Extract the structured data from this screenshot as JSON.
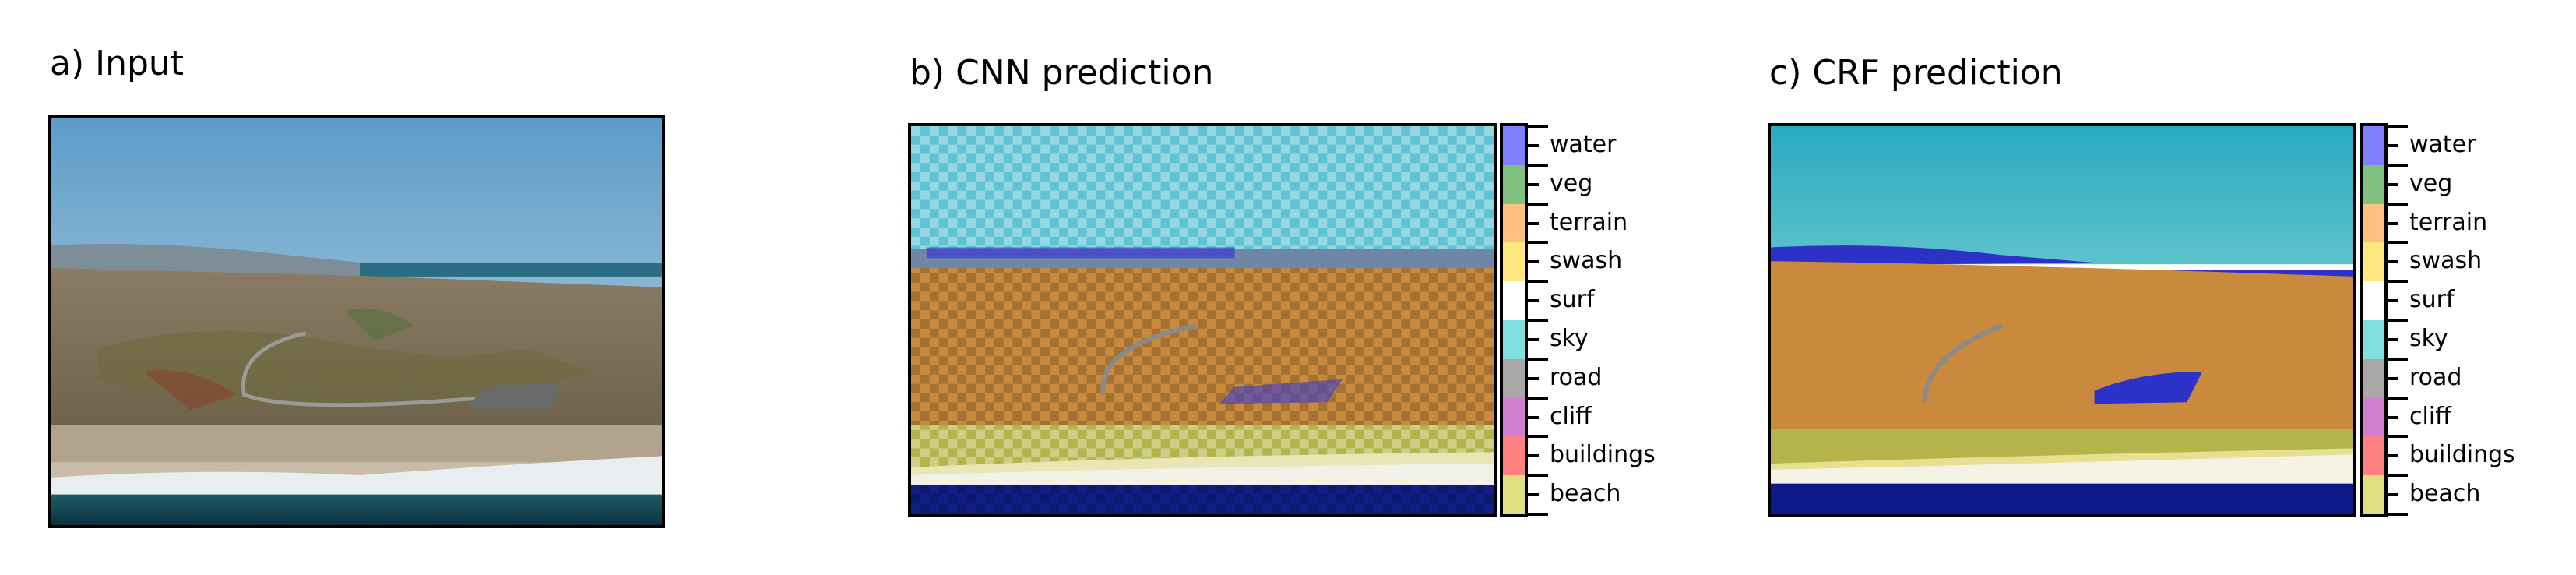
{
  "panels": [
    {
      "title": "a) Input"
    },
    {
      "title": "b) CNN prediction"
    },
    {
      "title": "c) CRF prediction"
    }
  ],
  "colorbar": {
    "classes": [
      {
        "label": "water",
        "color": "#8080ff"
      },
      {
        "label": "veg",
        "color": "#80c080"
      },
      {
        "label": "terrain",
        "color": "#ffc080"
      },
      {
        "label": "swash",
        "color": "#ffe880"
      },
      {
        "label": "surf",
        "color": "#ffffff"
      },
      {
        "label": "sky",
        "color": "#80e0e0"
      },
      {
        "label": "road",
        "color": "#a8a8a8"
      },
      {
        "label": "cliff",
        "color": "#d080d0"
      },
      {
        "label": "buildings",
        "color": "#ff8080"
      },
      {
        "label": "beach",
        "color": "#e0e080"
      }
    ]
  }
}
